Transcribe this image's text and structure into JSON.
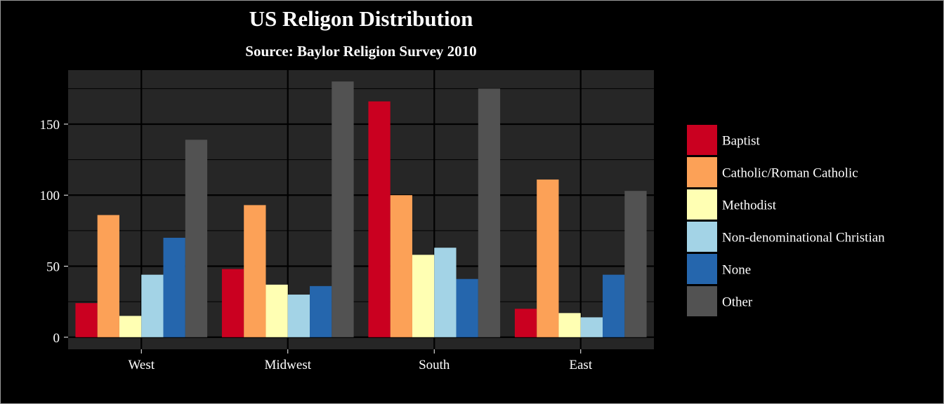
{
  "chart_data": {
    "type": "bar",
    "title": "US Religon Distribution",
    "subtitle": "Source: Baylor Religion Survey 2010",
    "xlabel": "",
    "ylabel": "",
    "categories": [
      "West",
      "Midwest",
      "South",
      "East"
    ],
    "ylim": [
      -8.5,
      188
    ],
    "yticks": [
      0,
      50,
      100,
      150
    ],
    "grid": true,
    "legend_position": "right",
    "series": [
      {
        "name": "Baptist",
        "color": "#ca0020",
        "values": [
          24,
          48,
          166,
          20
        ]
      },
      {
        "name": "Catholic/Roman Catholic",
        "color": "#fca157",
        "values": [
          86,
          93,
          100,
          111
        ]
      },
      {
        "name": "Methodist",
        "color": "#ffffb3",
        "values": [
          15,
          37,
          58,
          17
        ]
      },
      {
        "name": "Non-denominational Christian",
        "color": "#a3d3e6",
        "values": [
          44,
          30,
          63,
          14
        ]
      },
      {
        "name": "None",
        "color": "#2566ad",
        "values": [
          70,
          36,
          41,
          44
        ]
      },
      {
        "name": "Other",
        "color": "#525252",
        "values": [
          139,
          180,
          175,
          103
        ]
      }
    ]
  }
}
